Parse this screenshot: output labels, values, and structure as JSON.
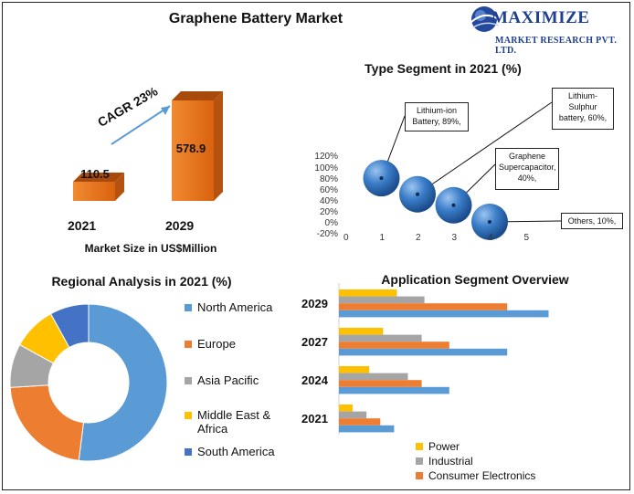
{
  "title": "Graphene Battery Market",
  "logo": {
    "name": "MAXIMIZE",
    "sub": "MARKET RESEARCH PVT. LTD.",
    "icon": "globe-icon"
  },
  "colors": {
    "north_america": "#5b9bd5",
    "europe": "#ed7d31",
    "asia_pacific": "#a5a5a5",
    "mea": "#ffc000",
    "south_america": "#4472c4",
    "market_bar": "#e8711d",
    "sphere": "#2f6eb5"
  },
  "chart_data": [
    {
      "type": "bar",
      "categories": [
        "2021",
        "2029"
      ],
      "values": [
        110.5,
        578.9
      ],
      "value_labels": [
        "110.5",
        "578.9"
      ],
      "annotation": "CAGR 23%",
      "xlabel": "Market Size in US$Million"
    },
    {
      "type": "scatter",
      "title": "Type Segment in 2021 (%)",
      "x": [
        1,
        2,
        3,
        4
      ],
      "y": [
        89,
        60,
        40,
        10
      ],
      "point_labels": [
        "Lithium-ion Battery, 89%,",
        "Lithium-Sulphur battery, 60%,",
        "Graphene Supercapacitor, 40%,",
        "Others, 10%,"
      ],
      "xticks": [
        "0",
        "1",
        "2",
        "3",
        "4",
        "5"
      ],
      "yticks": [
        "120%",
        "100%",
        "80%",
        "60%",
        "40%",
        "20%",
        "0%",
        "-20%"
      ],
      "xlim": [
        0,
        5
      ],
      "ylim": [
        -20,
        120
      ]
    },
    {
      "type": "pie",
      "title": "Regional Analysis in 2021 (%)",
      "labels": [
        "North America",
        "Europe",
        "Asia Pacific",
        "Middle East & Africa",
        "South America"
      ],
      "values": [
        52,
        22,
        9,
        9,
        8
      ],
      "style": "donut"
    },
    {
      "type": "bar",
      "orientation": "horizontal",
      "title": "Application Segment Overview",
      "categories": [
        "2029",
        "2027",
        "2024",
        "2021"
      ],
      "series": [
        {
          "name": "Power",
          "values": [
            4.2,
            3.2,
            2.2,
            1.0
          ]
        },
        {
          "name": "Industrial",
          "values": [
            6.2,
            6.0,
            5.0,
            2.0
          ]
        },
        {
          "name": "Consumer Electronics",
          "values": [
            12.2,
            8.0,
            6.0,
            3.0
          ]
        },
        {
          "name": "",
          "values": [
            15.2,
            12.2,
            8.0,
            4.0
          ]
        }
      ],
      "legend": "bottom"
    }
  ]
}
